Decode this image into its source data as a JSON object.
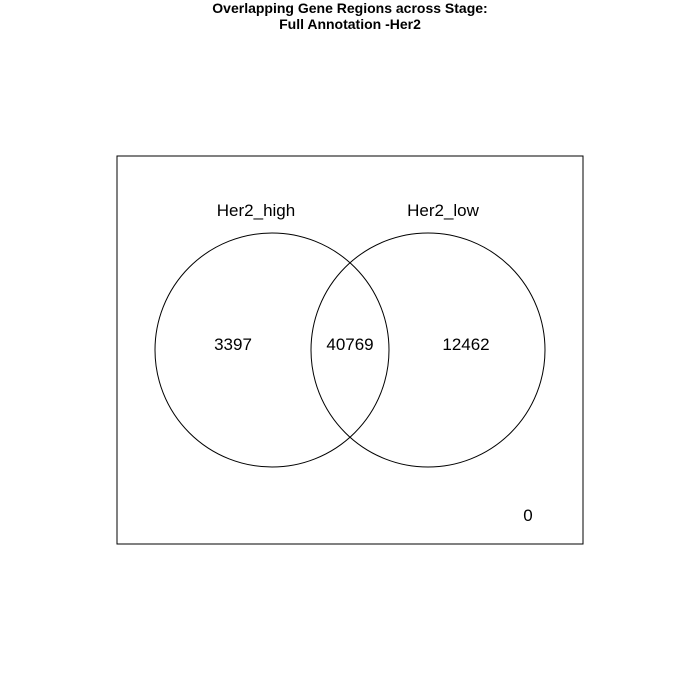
{
  "title": {
    "line1": "Overlapping Gene Regions across Stage:",
    "line2": "Full Annotation -Her2"
  },
  "sets": [
    {
      "name": "Her2_high"
    },
    {
      "name": "Her2_low"
    }
  ],
  "regions": {
    "only_a": "3397",
    "a_and_b": "40769",
    "only_b": "12462",
    "neither": "0"
  },
  "colors": {
    "background": "#ffffff",
    "stroke": "#000000"
  }
}
